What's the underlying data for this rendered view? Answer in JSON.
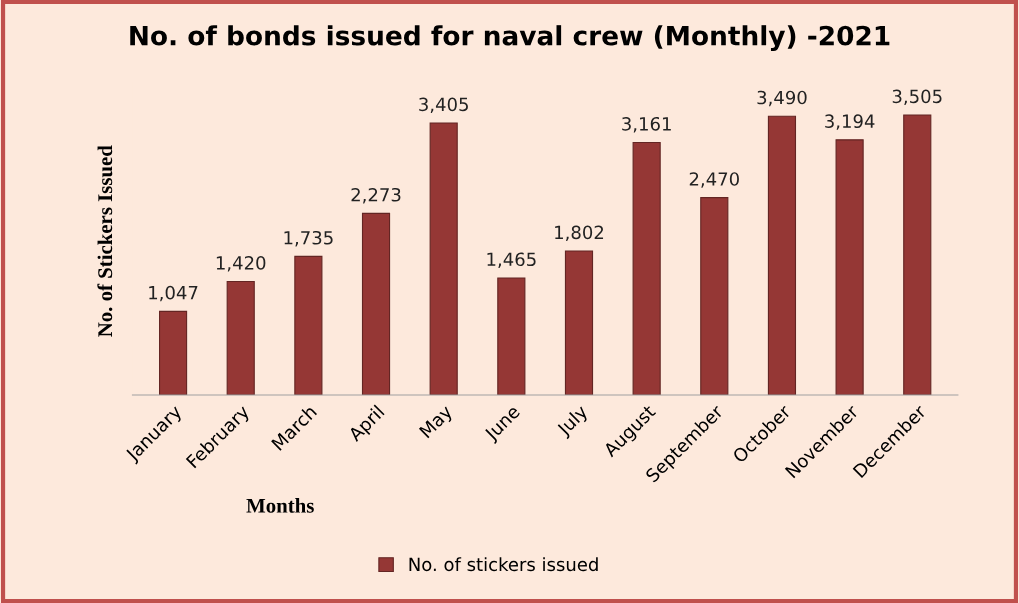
{
  "chart_data": {
    "type": "bar",
    "title": "No. of bonds issued for naval crew (Monthly) -2021",
    "xlabel": "Months",
    "ylabel": "No. of Stickers Issued",
    "categories": [
      "January",
      "February",
      "March",
      "April",
      "May",
      "June",
      "July",
      "August",
      "September",
      "October",
      "November",
      "December"
    ],
    "series": [
      {
        "name": "No. of stickers issued",
        "color": "#953735",
        "values": [
          1047,
          1420,
          1735,
          2273,
          3405,
          1465,
          1802,
          3161,
          2470,
          3490,
          3194,
          3505
        ],
        "value_labels": [
          "1,047",
          "1,420",
          "1,735",
          "2,273",
          "3,405",
          "1,465",
          "1,802",
          "3,161",
          "2,470",
          "3,490",
          "3,194",
          "3,505"
        ]
      }
    ],
    "legend": "bottom"
  }
}
